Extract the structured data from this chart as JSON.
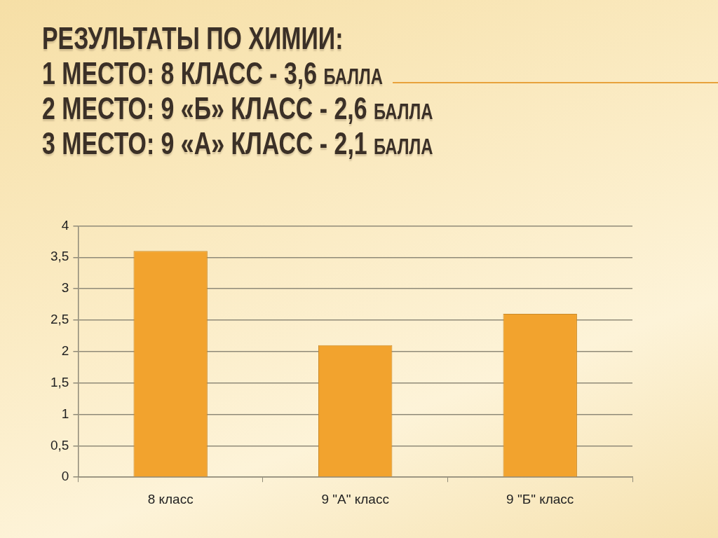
{
  "chart_data": {
    "type": "bar",
    "title": "РЕЗУЛЬТАТЫ ПО ХИМИИ:",
    "annotations": [
      "1 МЕСТО: 8 КЛАСС - 3,6 балла",
      "2 МЕСТО: 9 «Б» КЛАСС - 2,6 балла",
      "3 МЕСТО: 9 «А» КЛАСС - 2,1 балла"
    ],
    "categories": [
      "8 класс",
      "9 \"А\" класс",
      "9 \"Б\" класс"
    ],
    "values": [
      3.6,
      2.1,
      2.6
    ],
    "color": "#f2a32e",
    "ylim": [
      0,
      4
    ],
    "yticks": [
      0,
      {
        "value": 0.5,
        "label": "0,5"
      },
      1,
      {
        "value": 1.5,
        "label": "1,5"
      },
      2,
      {
        "value": 2.5,
        "label": "2,5"
      },
      3,
      {
        "value": 3.5,
        "label": "3,5"
      },
      4
    ],
    "grid": "y"
  }
}
